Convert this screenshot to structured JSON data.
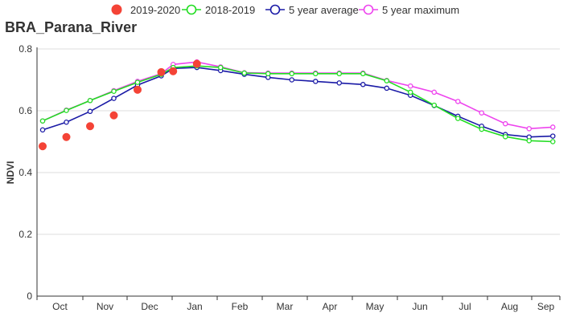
{
  "chart_data": {
    "type": "line",
    "title": "BRA_Parana_River",
    "ylabel": "NDVI",
    "xlabel": "",
    "ylim": [
      0,
      0.8
    ],
    "yticks": [
      "0",
      "0.2",
      "0.4",
      "0.6",
      "0.8"
    ],
    "month_labels": [
      "Oct",
      "Nov",
      "Dec",
      "Jan",
      "Feb",
      "Mar",
      "Apr",
      "May",
      "Jun",
      "Jul",
      "Aug",
      "Sep"
    ],
    "grid": true,
    "legend_position": "top",
    "series": [
      {
        "name": "2019-2020",
        "style": "markers",
        "color": "#f44336",
        "x": [
          0,
          1,
          2,
          3,
          4,
          5,
          5.5,
          6.5
        ],
        "values": [
          0.485,
          0.515,
          0.55,
          0.585,
          0.668,
          0.725,
          0.728,
          0.752
        ]
      },
      {
        "name": "2018-2019",
        "style": "line",
        "color": "#22dd22",
        "x": [
          0,
          1,
          2,
          3,
          4,
          5,
          5.5,
          6.5,
          7.5,
          8.5,
          9.5,
          10.5,
          11.5,
          12.5,
          13.5,
          14.5,
          15.5,
          16.5,
          17.5,
          18.5,
          19.5,
          20.5,
          21.5
        ],
        "values": [
          0.567,
          0.601,
          0.633,
          0.663,
          0.692,
          0.718,
          0.74,
          0.745,
          0.74,
          0.722,
          0.72,
          0.72,
          0.72,
          0.72,
          0.72,
          0.697,
          0.66,
          0.618,
          0.575,
          0.54,
          0.516,
          0.503,
          0.5
        ]
      },
      {
        "name": "5 year average",
        "style": "line",
        "color": "#1a1aa6",
        "x": [
          0,
          1,
          2,
          3,
          4,
          5,
          5.5,
          6.5,
          7.5,
          8.5,
          9.5,
          10.5,
          11.5,
          12.5,
          13.5,
          14.5,
          15.5,
          16.5,
          17.5,
          18.5,
          19.5,
          20.5,
          21.5
        ],
        "values": [
          0.538,
          0.563,
          0.598,
          0.64,
          0.683,
          0.713,
          0.737,
          0.74,
          0.73,
          0.718,
          0.708,
          0.7,
          0.695,
          0.69,
          0.685,
          0.673,
          0.65,
          0.617,
          0.582,
          0.55,
          0.523,
          0.515,
          0.518
        ]
      },
      {
        "name": "5 year maximum",
        "style": "line",
        "color": "#ee44ee",
        "x": [
          0,
          1,
          2,
          3,
          4,
          5,
          5.5,
          6.5,
          7.5,
          8.5,
          9.5,
          10.5,
          11.5,
          12.5,
          13.5,
          14.5,
          15.5,
          16.5,
          17.5,
          18.5,
          19.5,
          20.5,
          21.5
        ],
        "values": [
          0.567,
          0.602,
          0.633,
          0.665,
          0.695,
          0.72,
          0.75,
          0.758,
          0.742,
          0.723,
          0.722,
          0.722,
          0.722,
          0.722,
          0.722,
          0.698,
          0.68,
          0.66,
          0.63,
          0.593,
          0.558,
          0.542,
          0.547
        ]
      }
    ]
  }
}
